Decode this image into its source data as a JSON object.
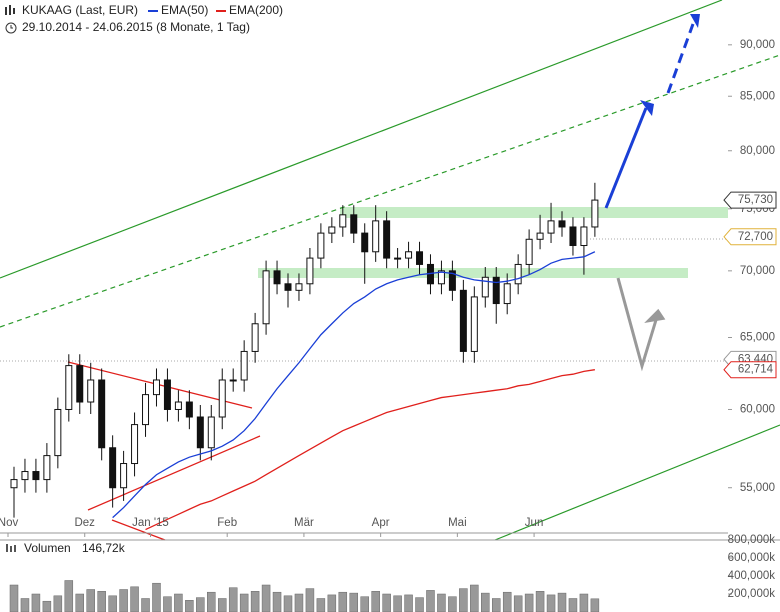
{
  "chart_data": {
    "type": "candlestick",
    "title": "KUKAAG (Last, EUR)",
    "subtitle": "29.10.2014 - 24.06.2015 (8 Monate, 1 Tag)",
    "log_scale": true,
    "ylim": [
      52.3,
      94.6
    ],
    "yticks": [
      {
        "value": 55,
        "label": "55,000"
      },
      {
        "value": 60,
        "label": "60,000"
      },
      {
        "value": 65,
        "label": "65,000"
      },
      {
        "value": 70,
        "label": "70,000"
      },
      {
        "value": 75,
        "label": "75,000"
      },
      {
        "value": 80,
        "label": "80,000"
      },
      {
        "value": 85,
        "label": "85,000"
      },
      {
        "value": 90,
        "label": "90,000"
      }
    ],
    "categories": [
      "Nov",
      null,
      null,
      null,
      null,
      null,
      null,
      "Dez",
      null,
      null,
      null,
      null,
      null,
      "Jan '15",
      null,
      null,
      null,
      null,
      null,
      null,
      "Feb",
      null,
      null,
      null,
      null,
      null,
      null,
      "Mär",
      null,
      null,
      null,
      null,
      null,
      null,
      "Apr",
      null,
      null,
      null,
      null,
      null,
      null,
      "Mai",
      null,
      null,
      null,
      null,
      null,
      null,
      "Jun",
      null,
      null,
      null,
      null,
      null
    ],
    "open": [
      55,
      55.5,
      56,
      55.5,
      57,
      60,
      63,
      60.5,
      62,
      57.5,
      55,
      56.5,
      59,
      61,
      62,
      60,
      60.5,
      59.5,
      57.5,
      59.5,
      62,
      62,
      64,
      66,
      70,
      69,
      68.5,
      69,
      71,
      73,
      73.5,
      74.5,
      73,
      71.5,
      74,
      71,
      71,
      71.5,
      70.5,
      69,
      70,
      68.5,
      64,
      68,
      69.5,
      67.5,
      69,
      70.5,
      72.5,
      73,
      74,
      73.5,
      72,
      73.5
    ],
    "high": [
      56.3,
      56.8,
      56.8,
      57.8,
      60.8,
      63.8,
      63.8,
      63.2,
      62.8,
      58.3,
      57.3,
      59.8,
      61.8,
      62.8,
      62.8,
      61.3,
      61.3,
      60.3,
      60.3,
      62.8,
      62.8,
      64.8,
      66.8,
      70.8,
      70.8,
      69.8,
      69.8,
      71.8,
      73.8,
      74.3,
      75.3,
      75.3,
      73.8,
      75.3,
      74.8,
      71.8,
      72.3,
      72.3,
      71.3,
      70.8,
      70.8,
      69.3,
      68.8,
      70.3,
      70.3,
      69.8,
      71.3,
      73.3,
      74.5,
      75.5,
      74.8,
      74.3,
      74.3,
      77.2
    ],
    "low": [
      53.2,
      54.7,
      54.7,
      54.7,
      56.2,
      59.2,
      59.7,
      59.7,
      56.7,
      53.8,
      54.2,
      55.7,
      58.2,
      60.2,
      59.2,
      59.2,
      58.7,
      56.7,
      56.7,
      58.7,
      61.2,
      61.2,
      63.2,
      65.2,
      68.2,
      67.2,
      67.7,
      68.2,
      70.2,
      72.2,
      72.7,
      72.2,
      69,
      70.7,
      70.2,
      70.2,
      70.2,
      69.7,
      68.2,
      68.2,
      67.7,
      63.2,
      63.2,
      67.2,
      66,
      66.7,
      68.2,
      69.7,
      71.7,
      72.2,
      72.7,
      71.2,
      69.7,
      72.7
    ],
    "close": [
      55.5,
      56,
      55.5,
      57,
      60,
      63,
      60.5,
      62,
      57.5,
      55,
      56.5,
      59,
      61,
      62,
      60,
      60.5,
      59.5,
      57.5,
      59.5,
      62,
      62,
      64,
      66,
      70,
      69,
      68.5,
      69,
      71,
      73,
      73.5,
      74.5,
      73,
      71.5,
      74,
      71,
      71,
      71.5,
      70.5,
      69,
      70,
      68.5,
      64,
      68,
      69.5,
      67.5,
      69,
      70.5,
      72.5,
      73,
      74,
      73.5,
      72,
      73.5,
      75.73
    ],
    "series": [
      {
        "name": "EMA(50)",
        "color": "#1a3fd6",
        "values": [
          null,
          null,
          null,
          null,
          null,
          null,
          null,
          null,
          null,
          53.2,
          53.8,
          54.5,
          55.2,
          55.8,
          56.2,
          56.6,
          56.9,
          57.1,
          57.3,
          57.6,
          58,
          58.6,
          59.4,
          60.4,
          61.4,
          62.3,
          63.2,
          64.2,
          65.2,
          66,
          66.8,
          67.5,
          68,
          68.6,
          69,
          69.3,
          69.5,
          69.7,
          69.8,
          69.9,
          69.8,
          69.5,
          69.3,
          69.2,
          69.1,
          69.2,
          69.4,
          69.7,
          70.1,
          70.6,
          70.9,
          71,
          71.1,
          71.5
        ]
      },
      {
        "name": "EMA(200)",
        "color": "#e0201c",
        "values": [
          null,
          null,
          null,
          null,
          null,
          null,
          null,
          null,
          null,
          null,
          null,
          null,
          52.5,
          52.8,
          53.1,
          53.4,
          53.7,
          54,
          54.2,
          54.5,
          54.8,
          55.1,
          55.4,
          55.8,
          56.2,
          56.6,
          57,
          57.4,
          57.8,
          58.2,
          58.6,
          58.9,
          59.2,
          59.5,
          59.8,
          60,
          60.2,
          60.4,
          60.6,
          60.8,
          60.9,
          61,
          61.1,
          61.2,
          61.3,
          61.4,
          61.6,
          61.7,
          61.9,
          62.1,
          62.3,
          62.4,
          62.6,
          62.714
        ]
      }
    ],
    "price_labels": [
      {
        "value": 75.73,
        "label": "75,730",
        "color": "#333333"
      },
      {
        "value": 72.7,
        "label": "72,700",
        "color": "#e0b23a"
      },
      {
        "value": 63.44,
        "label": "63,440",
        "color": "#999999"
      },
      {
        "value": 62.714,
        "label": "62,714",
        "color": "#e0201c"
      }
    ],
    "volume": {
      "name": "Volumen",
      "last": {
        "value": 146720,
        "label": "146,72k"
      },
      "ylim": [
        0,
        800000
      ],
      "yticks": [
        {
          "value": 200000,
          "label": "200,000k"
        },
        {
          "value": 400000,
          "label": "400,000k"
        },
        {
          "value": 600000,
          "label": "600,000k"
        },
        {
          "value": 800000,
          "label": "800,000k"
        }
      ],
      "values": [
        300000,
        150000,
        200000,
        120000,
        180000,
        350000,
        200000,
        250000,
        230000,
        180000,
        250000,
        280000,
        150000,
        320000,
        170000,
        200000,
        130000,
        160000,
        220000,
        150000,
        270000,
        200000,
        230000,
        300000,
        220000,
        180000,
        200000,
        260000,
        150000,
        190000,
        220000,
        210000,
        170000,
        230000,
        200000,
        180000,
        190000,
        160000,
        240000,
        200000,
        170000,
        260000,
        300000,
        210000,
        150000,
        220000,
        180000,
        200000,
        230000,
        190000,
        210000,
        150000,
        200000,
        146720
      ]
    }
  }
}
